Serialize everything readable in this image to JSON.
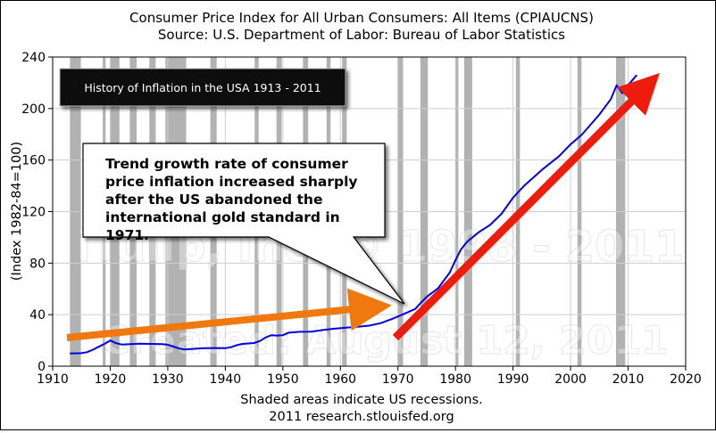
{
  "chart_data": {
    "type": "line",
    "title": "Consumer Price Index for All Urban Consumers: All Items (CPIAUCNS)",
    "subtitle": "Source: U.S. Department of Labor: Bureau of Labor Statistics",
    "ylabel": "(Index 1982-84=100)",
    "xlabel": "",
    "xlim": [
      1910,
      2020
    ],
    "ylim": [
      0,
      240
    ],
    "x_ticks": [
      "1910",
      "1920",
      "1930",
      "1940",
      "1950",
      "1960",
      "1970",
      "1980",
      "1990",
      "2000",
      "2010",
      "2020"
    ],
    "y_ticks": [
      "0",
      "40",
      "80",
      "120",
      "160",
      "200",
      "240"
    ],
    "grid": true,
    "footer_note": "Shaded areas indicate US recessions.",
    "footer_source": "2011 research.stlouisfed.org",
    "inset_title": "History of Inflation in the USA 1913 - 2011",
    "annotation": "Trend growth rate of consumer price inflation increased sharply after the US abandoned the international gold standard in 1971.",
    "watermark_1": "iTulip, Inc. © 1998 - 2011",
    "watermark_2": "Created: August 12, 2011",
    "series": [
      {
        "color": "#0000e0",
        "x": [
          1913,
          1915,
          1916,
          1917,
          1918,
          1919,
          1920,
          1921,
          1922,
          1925,
          1929,
          1930,
          1931,
          1932,
          1933,
          1936,
          1938,
          1940,
          1941,
          1942,
          1943,
          1945,
          1946,
          1947,
          1948,
          1949,
          1950,
          1951,
          1953,
          1955,
          1957,
          1959,
          1961,
          1963,
          1965,
          1967,
          1969,
          1971,
          1973,
          1974,
          1975,
          1977,
          1979,
          1980,
          1981,
          1982,
          1984,
          1986,
          1988,
          1990,
          1992,
          1995,
          1998,
          2000,
          2002,
          2005,
          2007,
          2008,
          2009,
          2010,
          2011.5
        ],
        "y": [
          9.9,
          10.1,
          10.9,
          12.8,
          15.1,
          17.3,
          20.0,
          17.9,
          16.8,
          17.5,
          17.1,
          16.7,
          15.2,
          13.7,
          13.0,
          13.9,
          14.1,
          14.0,
          14.7,
          16.3,
          17.3,
          18.0,
          19.5,
          22.3,
          24.1,
          23.8,
          24.1,
          26.0,
          26.7,
          26.8,
          28.1,
          29.1,
          29.9,
          30.6,
          31.5,
          33.4,
          36.7,
          40.5,
          44.4,
          49.3,
          53.8,
          60.6,
          72.6,
          82.4,
          90.9,
          96.5,
          103.9,
          109.6,
          118.3,
          130.7,
          140.3,
          152.4,
          163.0,
          172.2,
          179.9,
          195.3,
          207.3,
          218.0,
          212.0,
          218.1,
          226.0
        ]
      }
    ],
    "recessions": [
      [
        1913.0,
        1914.9
      ],
      [
        1918.7,
        1919.2
      ],
      [
        1920.0,
        1921.6
      ],
      [
        1923.4,
        1924.6
      ],
      [
        1926.8,
        1927.9
      ],
      [
        1929.6,
        1933.2
      ],
      [
        1937.4,
        1938.5
      ],
      [
        1945.1,
        1945.8
      ],
      [
        1948.9,
        1949.8
      ],
      [
        1953.5,
        1954.4
      ],
      [
        1957.6,
        1958.3
      ],
      [
        1960.3,
        1961.1
      ],
      [
        1969.9,
        1970.9
      ],
      [
        1973.9,
        1975.2
      ],
      [
        1980.0,
        1980.5
      ],
      [
        1981.5,
        1982.9
      ],
      [
        1990.5,
        1991.2
      ],
      [
        2001.2,
        2001.9
      ],
      [
        2007.9,
        2009.5
      ]
    ],
    "colors": {
      "recession": "#b2b2b2",
      "series": "#0000e0",
      "orange_arrow": "#f0790f",
      "red_arrow": "#ee1c0c",
      "inset_bg": "#111111"
    }
  }
}
